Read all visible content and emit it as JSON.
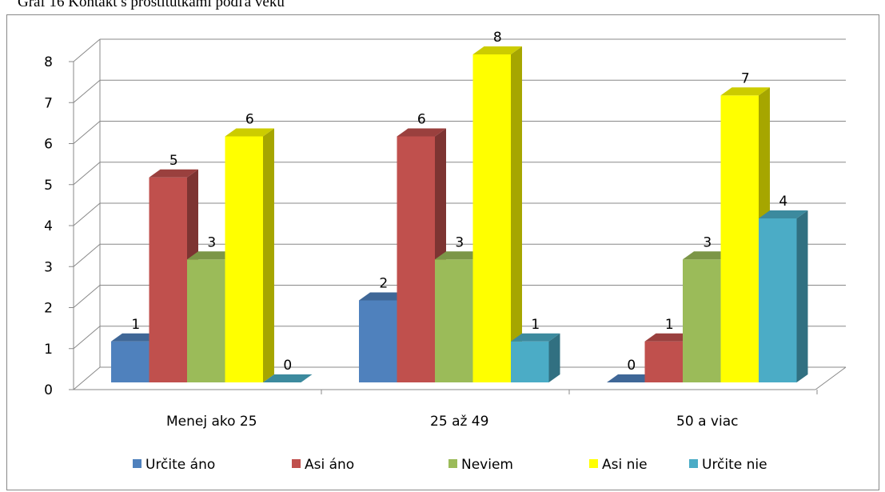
{
  "chart_data": {
    "type": "bar3d",
    "title": "Graf 16 Kontakt s prostitútkami podľa veku",
    "categories": [
      "Menej ako 25",
      "25 až 49",
      "50 a viac"
    ],
    "series": [
      {
        "name": "Určite áno",
        "color": "#4f81bd",
        "values": [
          1,
          2,
          0
        ]
      },
      {
        "name": "Asi áno",
        "color": "#c0504d",
        "values": [
          5,
          6,
          1
        ]
      },
      {
        "name": "Neviem",
        "color": "#9bbb59",
        "values": [
          3,
          3,
          3
        ]
      },
      {
        "name": "Asi nie",
        "color": "#ffff00",
        "values": [
          6,
          8,
          7
        ]
      },
      {
        "name": "Určite nie",
        "color": "#4bacc6",
        "values": [
          0,
          1,
          4
        ]
      }
    ],
    "ylim": [
      0,
      8
    ],
    "yticks": [
      0,
      1,
      2,
      3,
      4,
      5,
      6,
      7,
      8
    ],
    "grid": true,
    "legend": "bottom"
  }
}
